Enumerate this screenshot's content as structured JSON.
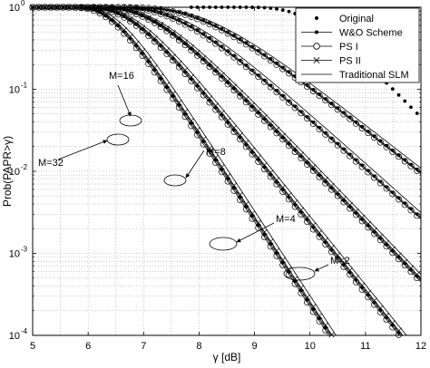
{
  "chart_data": {
    "type": "line",
    "xlabel": "γ [dB]",
    "ylabel": "Prob(PAPR>γ)",
    "xlim": [
      5,
      12
    ],
    "ylim": [
      0.0001,
      1
    ],
    "yscale": "log",
    "grid": true,
    "legend_position": "top-right",
    "x_ticks": [
      5,
      6,
      7,
      8,
      9,
      10,
      11,
      12
    ],
    "x_tick_labels": [
      "5",
      "6",
      "7",
      "8",
      "9",
      "10",
      "11",
      "12"
    ],
    "y_ticks": [
      0.0001,
      0.001,
      0.01,
      0.1,
      1
    ],
    "y_tick_labels": [
      {
        "base": "10",
        "exp": "-4"
      },
      {
        "base": "10",
        "exp": "-3"
      },
      {
        "base": "10",
        "exp": "-2"
      },
      {
        "base": "10",
        "exp": "-1"
      },
      {
        "base": "10",
        "exp": "0"
      }
    ],
    "legend": [
      {
        "label": "Original",
        "style": "dots"
      },
      {
        "label": "W&O Scheme",
        "style": "line-dot"
      },
      {
        "label": "PS I",
        "style": "line-circle"
      },
      {
        "label": "PS II",
        "style": "line-x"
      },
      {
        "label": "Traditional SLM",
        "style": "line"
      }
    ],
    "groups": [
      {
        "label": "M=2",
        "d": 8.2,
        "s": 0.82,
        "markers": [
          "circle",
          "dot",
          "none"
        ]
      },
      {
        "label": "M=4",
        "d": 7.75,
        "s": 0.72,
        "markers": [
          "circle",
          "dot",
          "none"
        ]
      },
      {
        "label": "M=8",
        "d": 7.25,
        "s": 0.62,
        "markers": [
          "circle",
          "dot",
          "x",
          "none"
        ]
      },
      {
        "label": "M=16",
        "d": 6.85,
        "s": 0.52,
        "markers": [
          "circle",
          "dot",
          "x",
          "none"
        ]
      },
      {
        "label": "M=32",
        "d": 6.5,
        "s": 0.42,
        "markers": [
          "circle",
          "dot",
          "x",
          "none"
        ]
      }
    ],
    "original": {
      "d": 10.1,
      "s": 0.62
    },
    "annotations": [
      {
        "text": "M=16"
      },
      {
        "text": "M=32"
      },
      {
        "text": "M=8"
      },
      {
        "text": "M=4"
      },
      {
        "text": "M=2"
      }
    ]
  }
}
